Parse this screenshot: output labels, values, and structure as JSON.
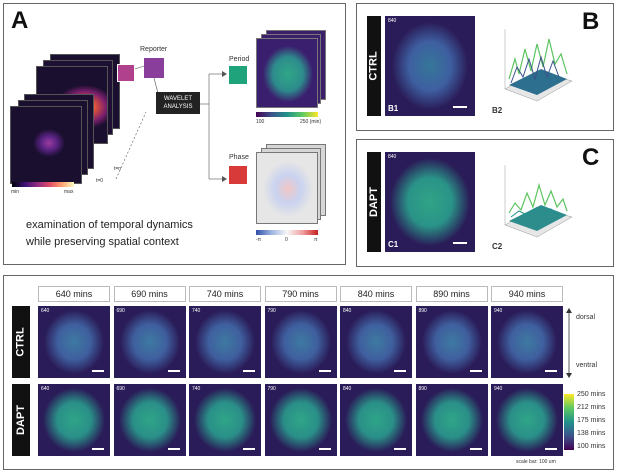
{
  "panel_a": {
    "letter": "A",
    "reporter_label": "Reporter",
    "wavelet_label_line1": "WAVELET",
    "wavelet_label_line2": "ANALYSIS",
    "period_label": "Period",
    "phase_label": "Phase",
    "stack_t_top": "t=n",
    "stack_t_bottom": "t=0",
    "colorbar_min": "min",
    "colorbar_max": "max",
    "period_scale_min": "100",
    "period_scale_max": "250 (min)",
    "phase_scale_min": "-π",
    "phase_scale_mid": "0",
    "phase_scale_max": "π",
    "caption_line1": "examination of temporal dynamics",
    "caption_line2": "while preserving spatial context",
    "colors": {
      "period_box": "#1fa37a",
      "phase_box": "#d83a3a",
      "reporter_box": "#8a3e9c",
      "wavelet_box": "#222222"
    }
  },
  "panel_b": {
    "letter": "B",
    "row_label": "CTRL",
    "time_label": "840",
    "sub1": "B1",
    "sub2": "B2"
  },
  "panel_c": {
    "letter": "C",
    "row_label": "DAPT",
    "time_label": "840",
    "sub1": "C1",
    "sub2": "C2"
  },
  "panel_bottom": {
    "timepoints": [
      "640 mins",
      "690 mins",
      "740 mins",
      "790 mins",
      "840 mins",
      "890 mins",
      "940 mins"
    ],
    "tile_labels": [
      "640",
      "690",
      "740",
      "790",
      "840",
      "890",
      "940"
    ],
    "rows": [
      "CTRL",
      "DAPT"
    ],
    "axis_top": "dorsal",
    "axis_bottom": "ventral",
    "colorbar_ticks": [
      "250 mins",
      "212 mins",
      "175 mins",
      "138 mins",
      "100 mins"
    ],
    "scale_bar_note": "scale bar: 100 um"
  }
}
